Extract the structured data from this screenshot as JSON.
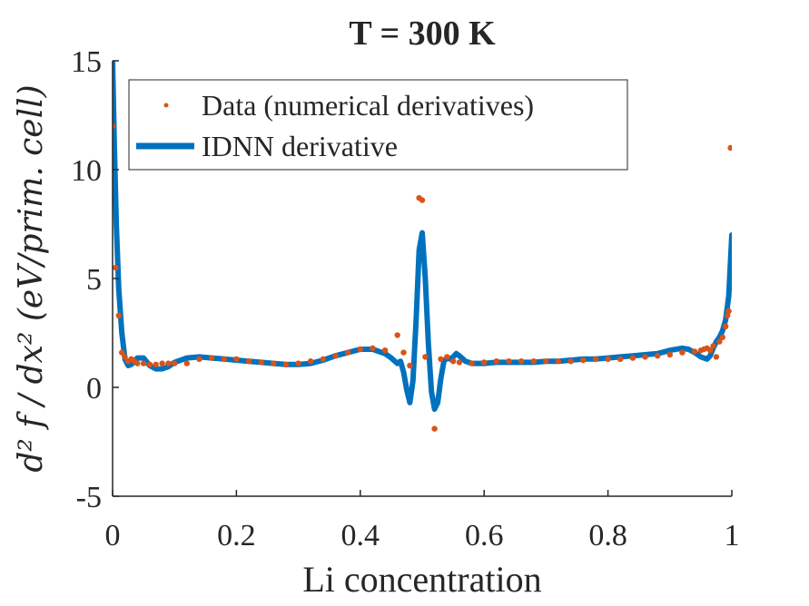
{
  "chart_data": {
    "type": "line",
    "title": "T = 300 K",
    "xlabel": "Li concentration",
    "ylabel": "d² f / dx²  (eV/prim. cell)",
    "xlim": [
      0,
      1
    ],
    "ylim": [
      -5,
      15
    ],
    "xticks": [
      0,
      0.2,
      0.4,
      0.6,
      0.8,
      1
    ],
    "xtick_labels": [
      "0",
      "0.2",
      "0.4",
      "0.6",
      "0.8",
      "1"
    ],
    "yticks": [
      -5,
      0,
      5,
      10,
      15
    ],
    "ytick_labels": [
      "-5",
      "0",
      "5",
      "10",
      "15"
    ],
    "grid": false,
    "legend_position": "top-left",
    "series": [
      {
        "name": "Data (numerical derivatives)",
        "kind": "scatter",
        "color": "#D95319",
        "x": [
          0.0,
          0.005,
          0.01,
          0.015,
          0.02,
          0.025,
          0.03,
          0.035,
          0.04,
          0.05,
          0.06,
          0.07,
          0.08,
          0.09,
          0.1,
          0.12,
          0.14,
          0.16,
          0.18,
          0.2,
          0.22,
          0.24,
          0.26,
          0.28,
          0.3,
          0.32,
          0.34,
          0.36,
          0.38,
          0.4,
          0.42,
          0.44,
          0.46,
          0.47,
          0.48,
          0.495,
          0.5,
          0.505,
          0.52,
          0.53,
          0.54,
          0.55,
          0.56,
          0.58,
          0.6,
          0.62,
          0.64,
          0.66,
          0.68,
          0.7,
          0.72,
          0.74,
          0.76,
          0.78,
          0.8,
          0.82,
          0.84,
          0.86,
          0.88,
          0.9,
          0.92,
          0.94,
          0.95,
          0.955,
          0.96,
          0.965,
          0.97,
          0.975,
          0.98,
          0.985,
          0.99,
          0.993,
          0.995,
          0.998
        ],
        "y": [
          12.0,
          5.5,
          3.3,
          1.6,
          1.4,
          1.2,
          1.3,
          1.2,
          1.1,
          1.1,
          1.05,
          1.05,
          1.1,
          1.1,
          1.1,
          1.1,
          1.3,
          1.35,
          1.3,
          1.3,
          1.2,
          1.15,
          1.1,
          1.05,
          1.1,
          1.2,
          1.3,
          1.45,
          1.6,
          1.75,
          1.8,
          1.7,
          2.4,
          1.6,
          1.0,
          8.7,
          8.6,
          1.4,
          -1.9,
          1.3,
          1.4,
          1.2,
          1.15,
          1.1,
          1.15,
          1.2,
          1.2,
          1.2,
          1.2,
          1.2,
          1.2,
          1.2,
          1.25,
          1.3,
          1.3,
          1.3,
          1.35,
          1.4,
          1.45,
          1.5,
          1.6,
          1.65,
          1.7,
          1.75,
          1.8,
          1.7,
          1.9,
          1.4,
          2.1,
          2.3,
          2.8,
          3.3,
          3.5,
          11.0
        ]
      },
      {
        "name": "IDNN derivative",
        "kind": "line",
        "color": "#0072BD",
        "x": [
          0.0,
          0.003,
          0.006,
          0.01,
          0.015,
          0.02,
          0.025,
          0.03,
          0.04,
          0.05,
          0.06,
          0.07,
          0.08,
          0.09,
          0.1,
          0.12,
          0.14,
          0.16,
          0.18,
          0.2,
          0.22,
          0.24,
          0.26,
          0.28,
          0.3,
          0.32,
          0.34,
          0.36,
          0.38,
          0.4,
          0.42,
          0.44,
          0.45,
          0.46,
          0.465,
          0.47,
          0.475,
          0.48,
          0.485,
          0.49,
          0.495,
          0.5,
          0.505,
          0.51,
          0.515,
          0.52,
          0.525,
          0.53,
          0.535,
          0.54,
          0.545,
          0.55,
          0.555,
          0.56,
          0.57,
          0.58,
          0.6,
          0.62,
          0.64,
          0.66,
          0.68,
          0.7,
          0.72,
          0.74,
          0.76,
          0.78,
          0.8,
          0.82,
          0.84,
          0.86,
          0.88,
          0.9,
          0.92,
          0.93,
          0.94,
          0.95,
          0.96,
          0.965,
          0.97,
          0.975,
          0.98,
          0.985,
          0.99,
          0.995,
          1.0
        ],
        "y": [
          15.0,
          11.0,
          7.5,
          4.5,
          2.5,
          1.3,
          1.0,
          1.05,
          1.35,
          1.35,
          1.0,
          0.85,
          0.85,
          0.95,
          1.15,
          1.35,
          1.4,
          1.35,
          1.3,
          1.25,
          1.2,
          1.15,
          1.1,
          1.05,
          1.05,
          1.1,
          1.25,
          1.45,
          1.6,
          1.75,
          1.75,
          1.55,
          1.35,
          1.1,
          1.2,
          0.7,
          -0.1,
          -0.7,
          0.3,
          3.0,
          6.3,
          7.1,
          5.0,
          2.0,
          -0.2,
          -1.0,
          -0.7,
          0.4,
          1.2,
          1.35,
          1.3,
          1.4,
          1.55,
          1.45,
          1.2,
          1.1,
          1.1,
          1.15,
          1.15,
          1.15,
          1.15,
          1.2,
          1.2,
          1.25,
          1.3,
          1.3,
          1.35,
          1.4,
          1.45,
          1.5,
          1.55,
          1.7,
          1.8,
          1.75,
          1.6,
          1.4,
          1.3,
          1.45,
          1.8,
          2.1,
          2.3,
          2.6,
          3.1,
          4.2,
          7.0
        ]
      }
    ]
  }
}
